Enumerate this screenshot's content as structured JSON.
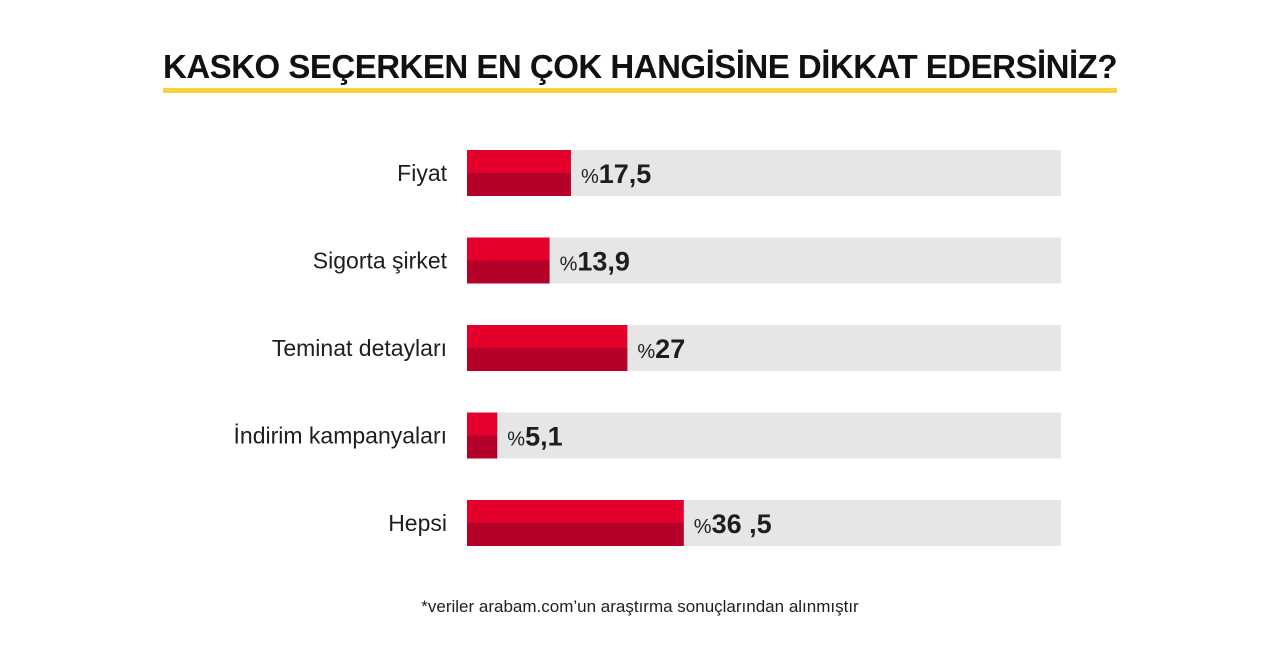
{
  "chart_data": {
    "type": "bar",
    "orientation": "horizontal",
    "title": "KASKO SEÇERKEN EN ÇOK HANGİSİNE DİKKAT EDERSİNİZ?",
    "categories": [
      "Fiyat",
      "Sigorta şirket",
      "Teminat detayları",
      "İndirim kampanyaları",
      "Hepsi"
    ],
    "values": [
      17.5,
      13.9,
      27,
      5.1,
      36.5
    ],
    "value_prefix": "%",
    "value_labels": [
      "17,5",
      "13,9",
      "27",
      "5,1",
      "36 ,5"
    ],
    "xlim": [
      0,
      100
    ],
    "grid": false,
    "legend": "none",
    "colors": {
      "bar_top": "#e3002b",
      "bar_bottom": "#b5002a",
      "track": "#e6e6e6",
      "title_underline": "#f7d23a"
    }
  },
  "footnote": "*veriler arabam.com’un araştırma sonuçlarından alınmıştır"
}
